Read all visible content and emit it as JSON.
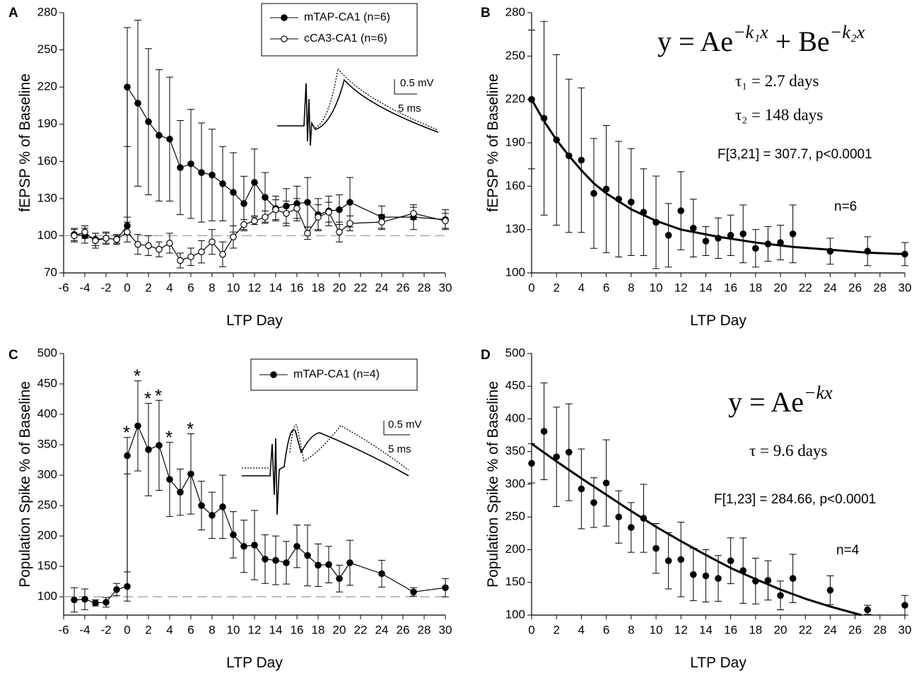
{
  "chart_data": [
    {
      "type": "line",
      "panel": "A",
      "xlabel": "LTP Day",
      "ylabel": "fEPSP % of Baseline",
      "xlim": [
        -6,
        30
      ],
      "xticks": [
        -6,
        -4,
        -2,
        0,
        2,
        4,
        6,
        8,
        10,
        12,
        14,
        16,
        18,
        20,
        22,
        24,
        26,
        28,
        30
      ],
      "ylim": [
        70,
        280
      ],
      "yticks": [
        70,
        100,
        130,
        160,
        190,
        220,
        250,
        280
      ],
      "refline": 100,
      "series": [
        {
          "name": "mTAP-CA1 (n=6)",
          "color": "#000000",
          "marker_fill": "#000000",
          "line": true,
          "x": [
            -5,
            -4,
            -3,
            -2,
            -1,
            0,
            0,
            1,
            2,
            3,
            4,
            5,
            6,
            7,
            8,
            9,
            10,
            11,
            12,
            13,
            14,
            15,
            16,
            17,
            18,
            19,
            20,
            21,
            24,
            27,
            30
          ],
          "values": [
            101,
            100,
            97,
            98,
            97,
            108,
            220,
            207,
            192,
            181,
            178,
            155,
            158,
            151,
            149,
            142,
            135,
            126,
            143,
            131,
            122,
            124,
            126,
            127,
            117,
            120,
            121,
            127,
            115,
            115,
            113
          ],
          "errors": [
            5,
            6,
            5,
            4,
            3,
            7,
            48,
            67,
            59,
            53,
            50,
            38,
            44,
            40,
            37,
            30,
            32,
            22,
            27,
            20,
            10,
            14,
            14,
            20,
            13,
            12,
            12,
            20,
            9,
            10,
            8
          ]
        },
        {
          "name": "cCA3-CA1 (n=6)",
          "color": "#000000",
          "marker_fill": "#ffffff",
          "line": true,
          "x": [
            -5,
            -4,
            -3,
            -2,
            -1,
            0,
            1,
            2,
            3,
            4,
            5,
            6,
            7,
            8,
            9,
            10,
            11,
            12,
            13,
            14,
            15,
            16,
            17,
            18,
            19,
            20,
            21,
            24,
            27,
            30
          ],
          "values": [
            100,
            103,
            96,
            98,
            97,
            103,
            93,
            92,
            89,
            94,
            80,
            83,
            87,
            95,
            85,
            99,
            109,
            112,
            115,
            121,
            118,
            122,
            102,
            115,
            119,
            103,
            110,
            111,
            118,
            112
          ],
          "errors": [
            5,
            5,
            6,
            5,
            4,
            8,
            8,
            8,
            6,
            8,
            6,
            7,
            9,
            10,
            10,
            9,
            4,
            3,
            5,
            8,
            10,
            8,
            5,
            10,
            8,
            8,
            6,
            6,
            5,
            6
          ]
        }
      ],
      "inset": {
        "voltage": "0.5 mV",
        "time": "5 ms"
      }
    },
    {
      "type": "line",
      "panel": "B",
      "xlabel": "LTP Day",
      "ylabel": "fEPSP % of Baseline",
      "xlim": [
        0,
        30
      ],
      "xticks": [
        0,
        2,
        4,
        6,
        8,
        10,
        12,
        14,
        16,
        18,
        20,
        22,
        24,
        26,
        28,
        30
      ],
      "ylim": [
        100,
        280
      ],
      "yticks": [
        100,
        130,
        160,
        190,
        220,
        250,
        280
      ],
      "series": [
        {
          "color": "#000000",
          "marker_fill": "#000000",
          "line": false,
          "x": [
            0,
            1,
            2,
            3,
            4,
            5,
            6,
            7,
            8,
            9,
            10,
            11,
            12,
            13,
            14,
            15,
            16,
            17,
            18,
            19,
            20,
            21,
            24,
            27,
            30
          ],
          "values": [
            220,
            207,
            192,
            181,
            178,
            155,
            158,
            151,
            149,
            142,
            135,
            126,
            143,
            131,
            122,
            124,
            126,
            127,
            117,
            120,
            121,
            127,
            115,
            115,
            113
          ],
          "errors": [
            48,
            67,
            59,
            53,
            50,
            38,
            44,
            40,
            37,
            30,
            32,
            22,
            27,
            20,
            10,
            14,
            14,
            20,
            13,
            12,
            12,
            20,
            9,
            10,
            8
          ]
        }
      ],
      "fit": {
        "color": "#000000",
        "x": [
          0,
          1,
          2,
          3,
          4,
          5,
          6,
          8,
          10,
          12,
          15,
          18,
          21,
          24,
          27,
          30
        ],
        "values": [
          220,
          205,
          192,
          181,
          171,
          162,
          155,
          144,
          136,
          130,
          125,
          121,
          118,
          116,
          114,
          113
        ]
      },
      "equation": [
        "y = Ae",
        "−k₁x",
        " + Be",
        "−k₂x"
      ],
      "annotations": [
        "τ₁ = 2.7 days",
        "τ₂ = 148 days",
        "F[3,21] = 307.7, p<0.0001",
        "n=6"
      ]
    },
    {
      "type": "line",
      "panel": "C",
      "xlabel": "LTP Day",
      "ylabel": "Population Spike % of Baseline",
      "xlim": [
        -6,
        30
      ],
      "xticks": [
        -6,
        -4,
        -2,
        0,
        2,
        4,
        6,
        8,
        10,
        12,
        14,
        16,
        18,
        20,
        22,
        24,
        26,
        28,
        30
      ],
      "ylim": [
        70,
        500
      ],
      "yticks": [
        100,
        150,
        200,
        250,
        300,
        350,
        400,
        450,
        500
      ],
      "refline": 100,
      "series": [
        {
          "name": "mTAP-CA1 (n=4)",
          "color": "#000000",
          "marker_fill": "#000000",
          "line": true,
          "x": [
            -5,
            -4,
            -3,
            -2,
            -1,
            0,
            0,
            1,
            2,
            3,
            4,
            5,
            6,
            7,
            8,
            9,
            10,
            11,
            12,
            13,
            14,
            15,
            16,
            17,
            18,
            19,
            20,
            21,
            24,
            27,
            30
          ],
          "values": [
            95,
            96,
            90,
            91,
            112,
            117,
            332,
            381,
            342,
            349,
            293,
            272,
            302,
            250,
            234,
            248,
            202,
            183,
            185,
            162,
            160,
            156,
            183,
            168,
            152,
            153,
            130,
            156,
            138,
            108,
            115
          ],
          "errors": [
            20,
            17,
            5,
            8,
            10,
            24,
            30,
            74,
            76,
            74,
            61,
            38,
            66,
            40,
            38,
            52,
            38,
            43,
            57,
            40,
            40,
            35,
            35,
            50,
            35,
            30,
            22,
            37,
            22,
            7,
            15
          ],
          "point_labels": [
            null,
            null,
            null,
            null,
            null,
            null,
            "*",
            "*",
            "*",
            "*",
            "*",
            null,
            "*",
            null,
            null,
            null,
            null,
            null,
            null,
            null,
            null,
            null,
            null,
            null,
            null,
            null,
            null,
            null,
            null,
            null,
            null
          ]
        }
      ],
      "inset": {
        "voltage": "0.5 mV",
        "time": "5 ms"
      }
    },
    {
      "type": "line",
      "panel": "D",
      "xlabel": "LTP Day",
      "ylabel": "Population Spike % of Baseline",
      "xlim": [
        0,
        30
      ],
      "xticks": [
        0,
        2,
        4,
        6,
        8,
        10,
        12,
        14,
        16,
        18,
        20,
        22,
        24,
        26,
        28,
        30
      ],
      "ylim": [
        100,
        500
      ],
      "yticks": [
        100,
        150,
        200,
        250,
        300,
        350,
        400,
        450,
        500
      ],
      "series": [
        {
          "color": "#000000",
          "marker_fill": "#000000",
          "line": false,
          "x": [
            0,
            1,
            2,
            3,
            4,
            5,
            6,
            7,
            8,
            9,
            10,
            11,
            12,
            13,
            14,
            15,
            16,
            17,
            18,
            19,
            20,
            21,
            24,
            27,
            30
          ],
          "values": [
            332,
            381,
            342,
            349,
            293,
            272,
            302,
            250,
            234,
            248,
            202,
            183,
            185,
            162,
            160,
            156,
            183,
            168,
            152,
            153,
            130,
            156,
            138,
            108,
            115
          ],
          "errors": [
            30,
            74,
            76,
            74,
            61,
            38,
            66,
            40,
            38,
            52,
            38,
            43,
            57,
            40,
            40,
            35,
            35,
            50,
            35,
            30,
            22,
            37,
            22,
            7,
            15
          ]
        }
      ],
      "fit": {
        "color": "#000000",
        "x": [
          0,
          2,
          4,
          6,
          8,
          10,
          12,
          14,
          16,
          18,
          20,
          22,
          24,
          26.5
        ],
        "values": [
          362,
          335,
          309,
          284,
          259,
          235,
          213,
          192,
          172,
          155,
          139,
          125,
          113,
          100
        ]
      },
      "equation": [
        "y = Ae",
        "−kx"
      ],
      "annotations": [
        "τ = 9.6 days",
        "F[1,23] = 284.66, p<0.0001",
        "n=4"
      ]
    }
  ]
}
